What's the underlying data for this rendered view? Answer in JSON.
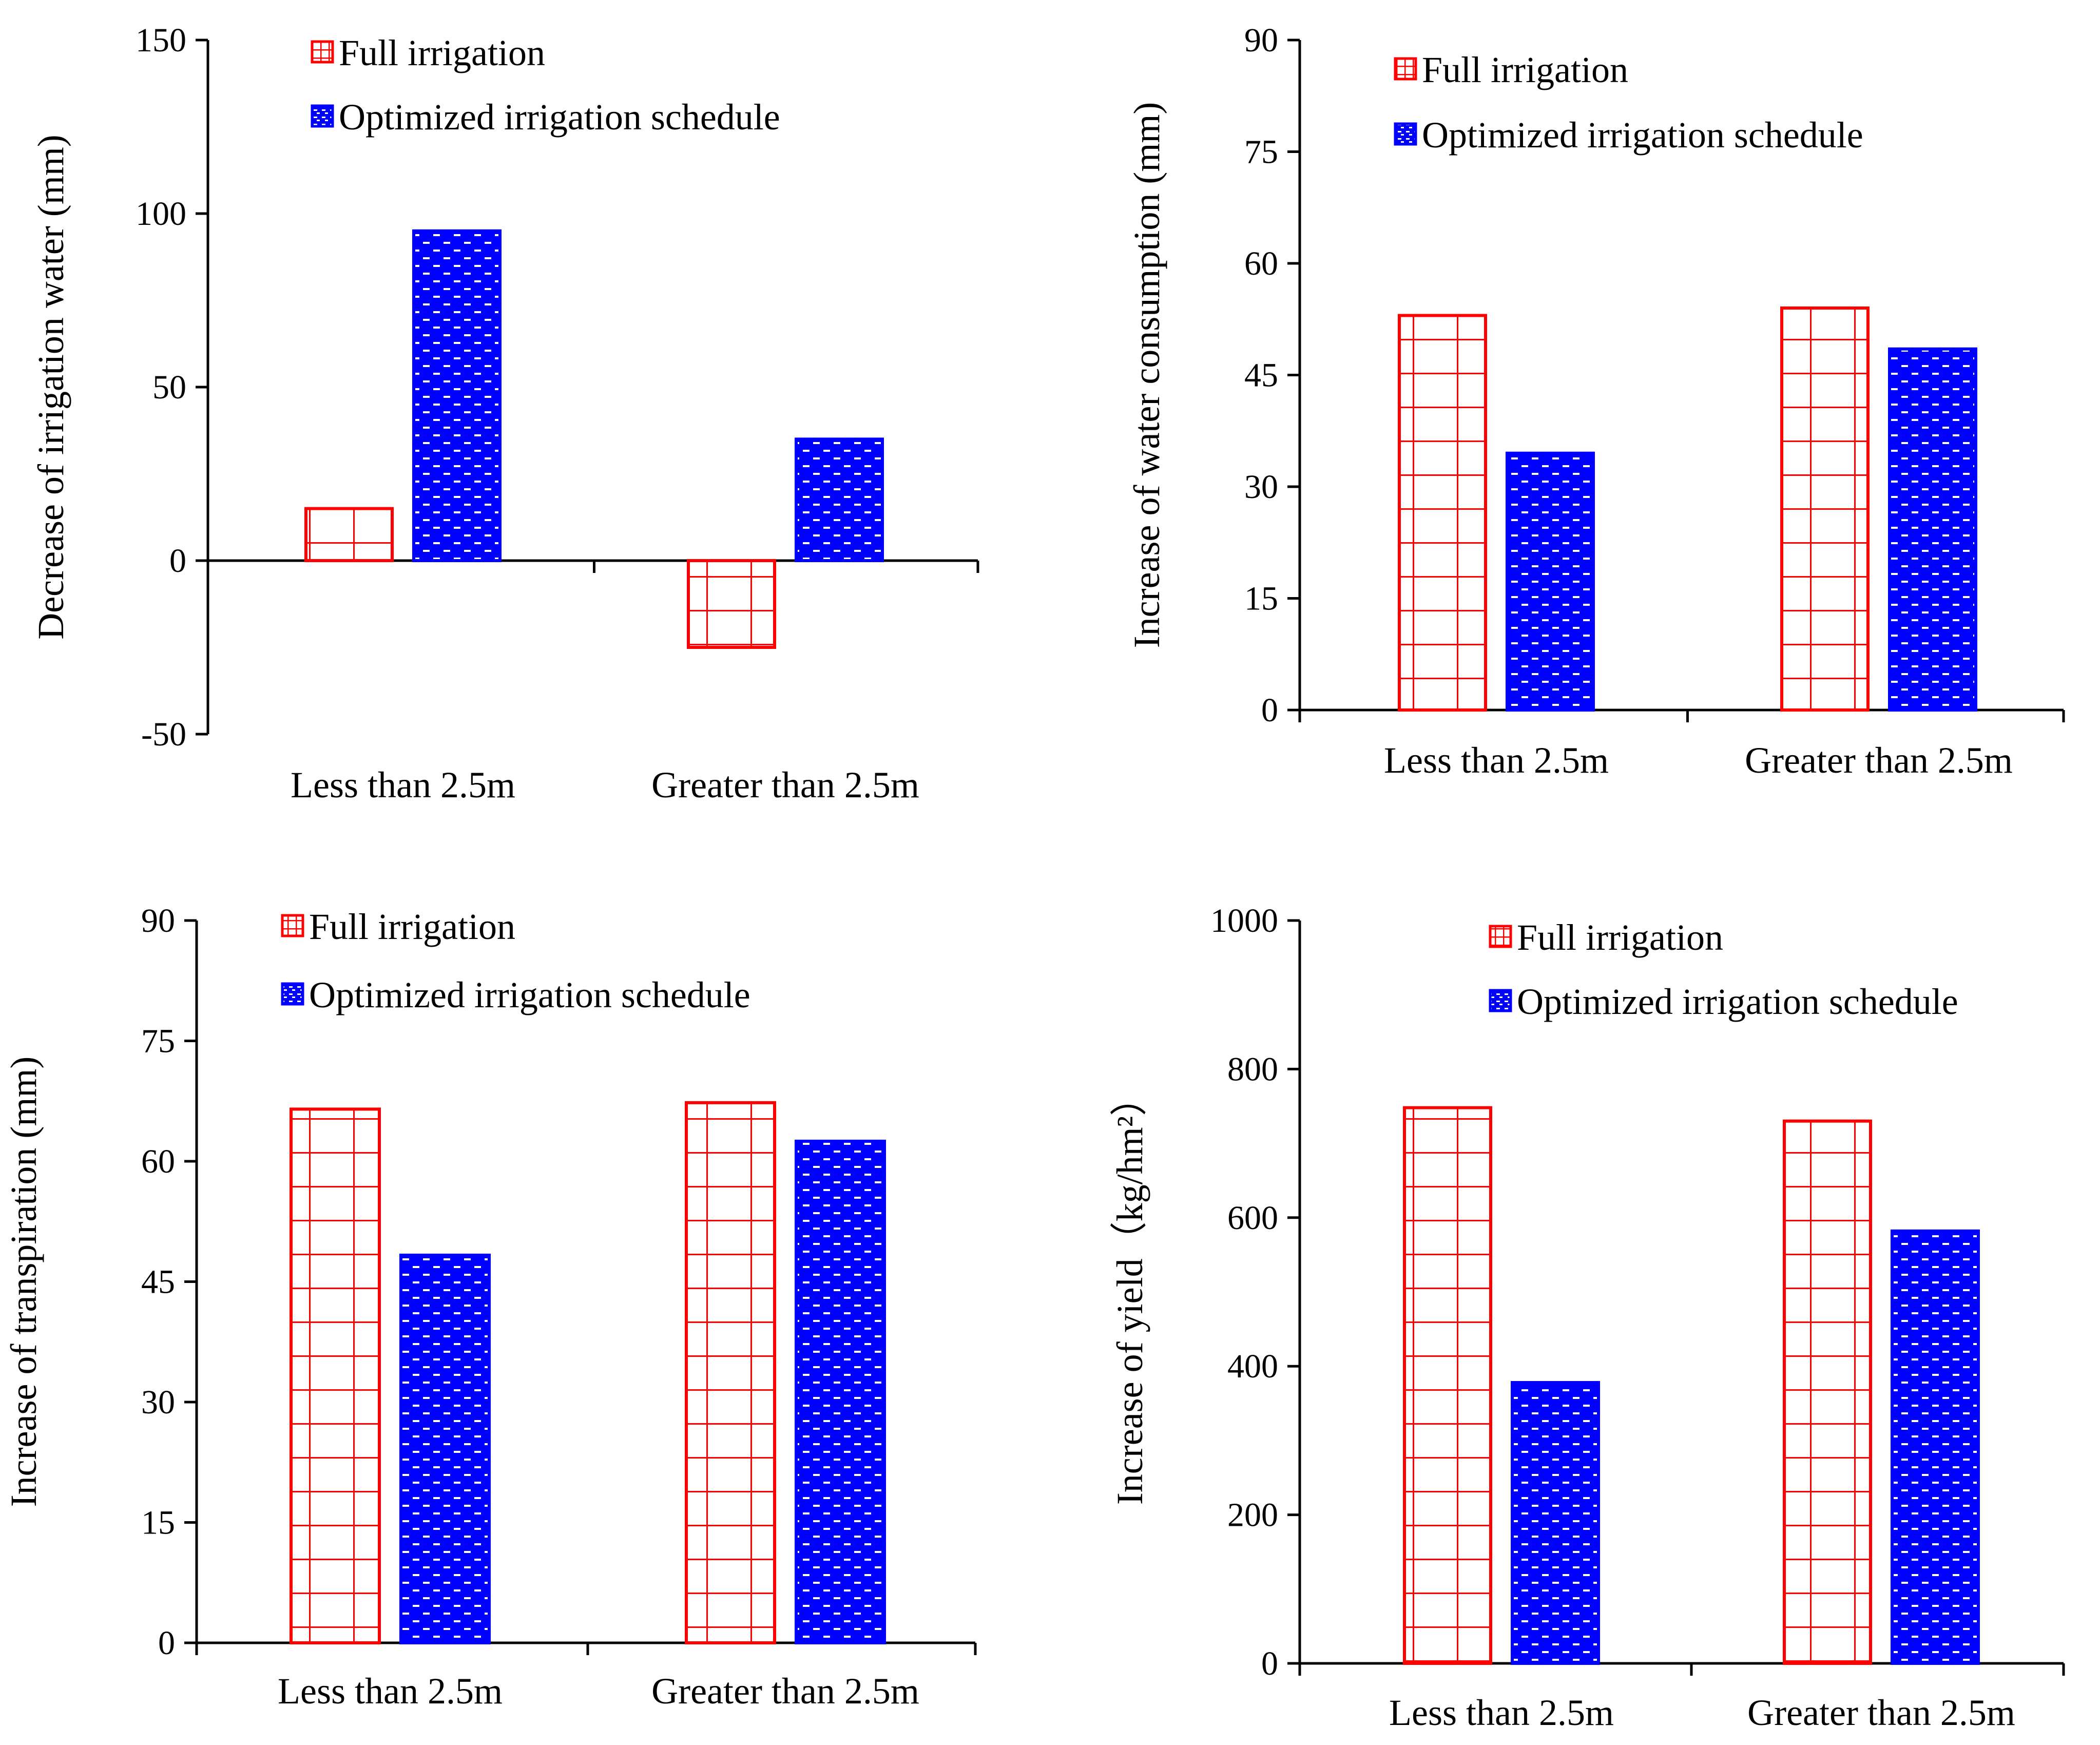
{
  "chart_data": [
    {
      "type": "bar",
      "categories": [
        "Less than 2.5m",
        "Greater than 2.5m"
      ],
      "series": [
        {
          "name": "Full irrigation",
          "values": [
            15,
            -25
          ],
          "color": "#ff0000",
          "pattern": "grid"
        },
        {
          "name": "Optimized irrigation schedule",
          "values": [
            95,
            35
          ],
          "color": "#0000ff",
          "pattern": "dotted-dashes"
        }
      ],
      "title": "",
      "xlabel": "",
      "ylabel": "Decrease of irrigation water (mm)",
      "ylim": [
        -50,
        150
      ],
      "yticks": [
        -50,
        0,
        50,
        100,
        150
      ],
      "ytick_labels": [
        "-50",
        "0",
        "50",
        "100",
        "150"
      ],
      "legend": "top-left",
      "grid": false
    },
    {
      "type": "bar",
      "categories": [
        "Less than 2.5m",
        "Greater than 2.5m"
      ],
      "series": [
        {
          "name": "Full irrigation",
          "values": [
            53,
            54
          ],
          "color": "#ff0000",
          "pattern": "grid"
        },
        {
          "name": "Optimized irrigation schedule",
          "values": [
            34.5,
            48.5
          ],
          "color": "#0000ff",
          "pattern": "dotted-dashes"
        }
      ],
      "title": "",
      "xlabel": "",
      "ylabel": "Increase of water consumption (mm)",
      "ylim": [
        0,
        90
      ],
      "yticks": [
        0,
        15,
        30,
        45,
        60,
        75,
        90
      ],
      "ytick_labels": [
        "0",
        "15",
        "30",
        "45",
        "60",
        "75",
        "90"
      ],
      "legend": "top-left",
      "grid": false
    },
    {
      "type": "bar",
      "categories": [
        "Less than 2.5m",
        "Greater than 2.5m"
      ],
      "series": [
        {
          "name": "Full irrigation",
          "values": [
            66.5,
            67.3
          ],
          "color": "#ff0000",
          "pattern": "grid"
        },
        {
          "name": "Optimized irrigation schedule",
          "values": [
            48.3,
            62.5
          ],
          "color": "#0000ff",
          "pattern": "dotted-dashes"
        }
      ],
      "title": "",
      "xlabel": "",
      "ylabel": "Increase of transpiration (mm)",
      "ylim": [
        0,
        90
      ],
      "yticks": [
        0,
        15,
        30,
        45,
        60,
        75,
        90
      ],
      "ytick_labels": [
        "0",
        "15",
        "30",
        "45",
        "60",
        "75",
        "90"
      ],
      "legend": "top-left",
      "grid": false
    },
    {
      "type": "bar",
      "categories": [
        "Less than 2.5m",
        "Greater than 2.5m"
      ],
      "series": [
        {
          "name": "Full irrigation",
          "values": [
            748,
            730
          ],
          "color": "#ff0000",
          "pattern": "grid"
        },
        {
          "name": "Optimized irrigation schedule",
          "values": [
            378,
            582
          ],
          "color": "#0000ff",
          "pattern": "dotted-dashes"
        }
      ],
      "title": "",
      "xlabel": "",
      "ylabel": "Increase of yield（kg/hm²）",
      "ylim": [
        0,
        1000
      ],
      "yticks": [
        0,
        200,
        400,
        600,
        800,
        1000
      ],
      "ytick_labels": [
        "0",
        "200",
        "400",
        "600",
        "800",
        "1000"
      ],
      "legend": "top-left",
      "grid": false
    }
  ]
}
